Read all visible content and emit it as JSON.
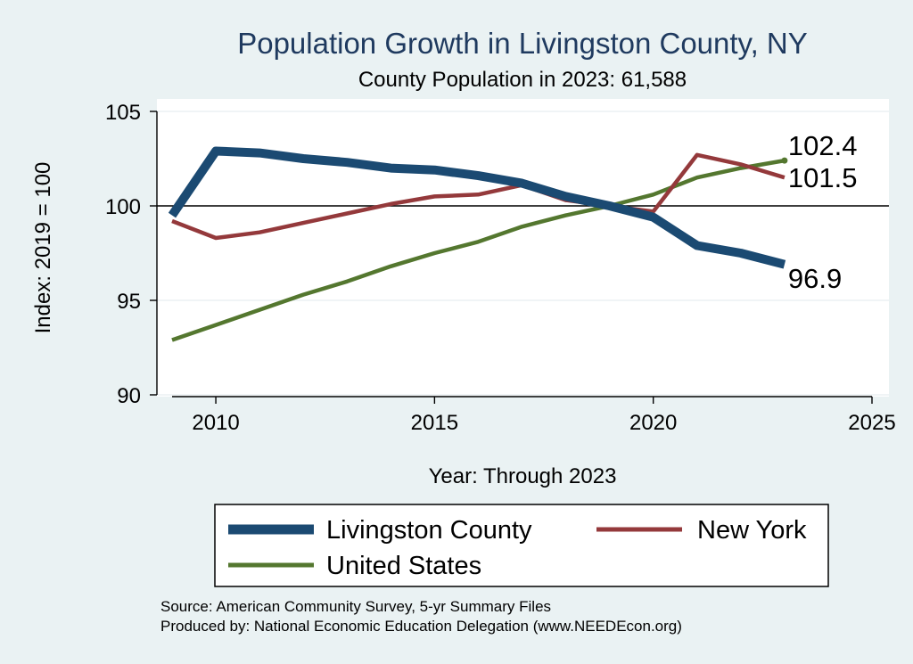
{
  "chart_data": {
    "type": "line",
    "title": "Population Growth in Livingston County, NY",
    "subtitle": "County Population in 2023: 61,588",
    "xlabel": "Year: Through 2023",
    "ylabel": "Index: 2019 = 100",
    "xlim": [
      2009,
      2025
    ],
    "ylim": [
      90,
      105
    ],
    "xticks": [
      2010,
      2015,
      2020,
      2025
    ],
    "yticks": [
      90,
      95,
      100,
      105
    ],
    "reference_line": 100,
    "x": [
      2009,
      2010,
      2011,
      2012,
      2013,
      2014,
      2015,
      2016,
      2017,
      2018,
      2019,
      2020,
      2021,
      2022,
      2023
    ],
    "series": [
      {
        "name": "Livingston  County",
        "color": "#1b4a72",
        "values": [
          99.5,
          102.9,
          102.8,
          102.5,
          102.3,
          102.0,
          101.9,
          101.6,
          101.2,
          100.5,
          100.0,
          99.4,
          97.9,
          97.5,
          96.9
        ],
        "end_label": "96.9"
      },
      {
        "name": "New York",
        "color": "#94393b",
        "values": [
          99.2,
          98.3,
          98.6,
          99.1,
          99.6,
          100.1,
          100.5,
          100.6,
          101.1,
          100.3,
          100.0,
          99.7,
          102.7,
          102.2,
          101.5
        ],
        "end_label": "101.5"
      },
      {
        "name": "United States",
        "color": "#54772f",
        "values": [
          92.9,
          93.7,
          94.5,
          95.3,
          96.0,
          96.8,
          97.5,
          98.1,
          98.9,
          99.5,
          100.0,
          100.6,
          101.5,
          102.0,
          102.4
        ],
        "end_label": "102.4"
      }
    ],
    "source_lines": [
      "Source: American Community Survey, 5-yr Summary Files",
      "Produced by: National Economic Education Delegation (www.NEEDEcon.org)"
    ]
  }
}
